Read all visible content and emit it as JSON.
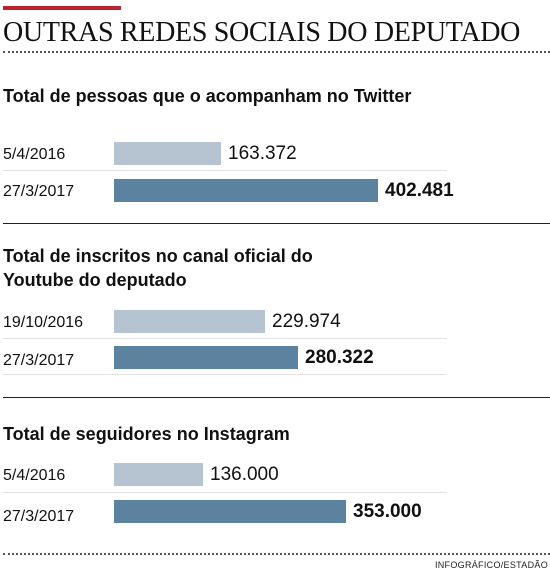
{
  "title": "OUTRAS REDES SOCIAIS DO DEPUTADO",
  "credit": "INFOGRÁFICO/ESTADÃO",
  "colors": {
    "accent": "#b8232f",
    "bar_earlier": "#b6c4d1",
    "bar_latest": "#5b829e"
  },
  "chart_data": [
    {
      "type": "bar",
      "orientation": "horizontal",
      "title": "Total de pessoas que o acompanham no Twitter",
      "categories": [
        "5/4/2016",
        "27/3/2017"
      ],
      "values": [
        163372,
        402481
      ],
      "value_labels": [
        "163.372",
        "402.481"
      ]
    },
    {
      "type": "bar",
      "orientation": "horizontal",
      "title": "Total de inscritos no canal oficial do Youtube do deputado",
      "categories": [
        "19/10/2016",
        "27/3/2017"
      ],
      "values": [
        229974,
        280322
      ],
      "value_labels": [
        "229.974",
        "280.322"
      ]
    },
    {
      "type": "bar",
      "orientation": "horizontal",
      "title": "Total de seguidores no Instagram",
      "categories": [
        "5/4/2016",
        "27/3/2017"
      ],
      "values": [
        136000,
        353000
      ],
      "value_labels": [
        "136.000",
        "353.000"
      ]
    }
  ]
}
